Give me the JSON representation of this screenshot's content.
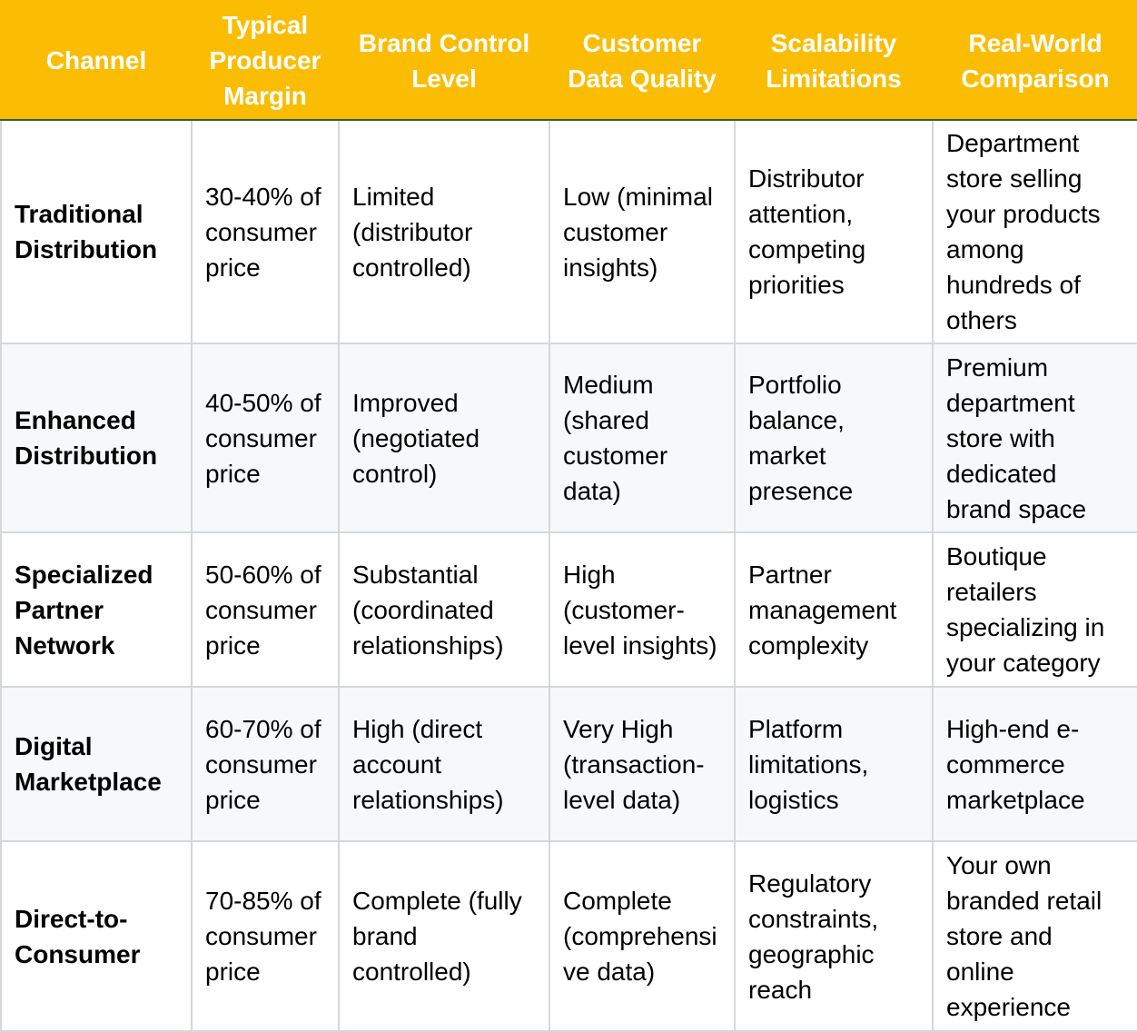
{
  "table": {
    "headers": [
      "Channel",
      "Typical Producer Margin",
      "Brand Control Level",
      "Customer Data Quality",
      "Scalability Limitations",
      "Real-World Comparison"
    ],
    "rows": [
      [
        "Traditional Distribution",
        "30-40% of consumer price",
        "Limited (distributor controlled)",
        "Low (minimal customer insights)",
        "Distributor attention, competing priorities",
        "Department store selling your products among hundreds of others"
      ],
      [
        "Enhanced Distribution",
        "40-50% of consumer price",
        "Improved (negotiated control)",
        "Medium (shared customer data)",
        "Portfolio balance, market presence",
        "Premium department store with dedicated brand space"
      ],
      [
        "Specialized Partner Network",
        "50-60% of consumer price",
        "Substantial (coordinated relationships)",
        "High (customer-level insights)",
        "Partner management complexity",
        "Boutique retailers specializing in your category"
      ],
      [
        "Digital Marketplace",
        "60-70% of consumer price",
        "High (direct account relationships)",
        "Very High (transaction-level data)",
        "Platform limitations, logistics",
        "High-end e-commerce marketplace"
      ],
      [
        "Direct-to-Consumer",
        "70-85% of consumer price",
        "Complete (fully brand controlled)",
        "Complete (comprehensive data)",
        "Regulatory constraints, geographic reach",
        "Your own branded retail store and online experience"
      ]
    ]
  },
  "colors": {
    "header_bg": "#fbbd04",
    "header_text": "#ffffff",
    "border": "#d4d8dc",
    "alt_row_bg": "#f6f8f9",
    "outer_border": "#3a5f2a"
  }
}
